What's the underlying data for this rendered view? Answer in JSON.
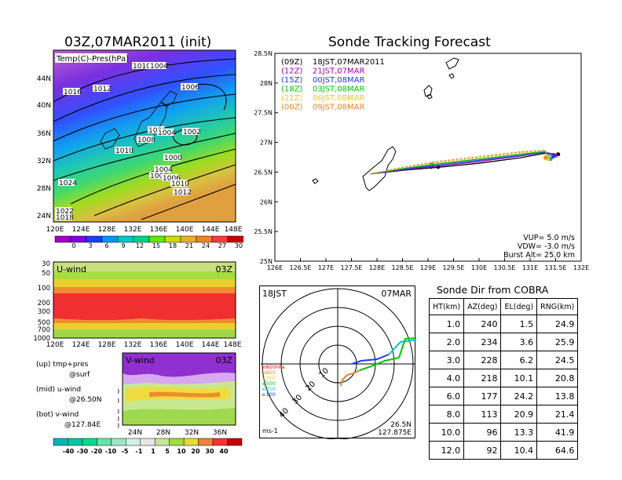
{
  "panels": {
    "sfc_title": "03Z,07MAR2011 (init)",
    "sfc_label": "Temp(C)-Pres(hPa)",
    "sfc_yticks": [
      "44N",
      "40N",
      "36N",
      "32N",
      "28N",
      "24N"
    ],
    "sfc_xticks": [
      "120E",
      "124E",
      "128E",
      "132E",
      "136E",
      "140E",
      "144E",
      "148E"
    ],
    "isobar_labels": [
      "1010",
      "1004",
      "1016",
      "1012",
      "1006",
      "1006",
      "1008",
      "1004",
      "1002",
      "1010",
      "1000",
      "1004",
      "1000",
      "1006",
      "1010",
      "1012",
      "1024",
      "1022",
      "1018"
    ],
    "temp_colorbar": {
      "ticks": [
        "0",
        "3",
        "6",
        "9",
        "12",
        "15",
        "18",
        "21",
        "24",
        "27",
        "30"
      ],
      "colors": [
        "#a000c8",
        "#8200dc",
        "#1e3cff",
        "#0096ff",
        "#00c8c8",
        "#00d28c",
        "#64e600",
        "#c8dc00",
        "#e6af2d",
        "#f08228",
        "#fa3c3c",
        "#c80000"
      ]
    },
    "uwind": {
      "label": "U-wind",
      "time": "03Z",
      "yticks": [
        "30",
        "50",
        "100",
        "200",
        "300",
        "500",
        "700",
        "1000"
      ],
      "xticks": [
        "120E",
        "124E",
        "128E",
        "132E",
        "136E",
        "140E",
        "144E",
        "148E"
      ]
    },
    "vwind": {
      "label": "V-wind",
      "time": "03Z",
      "yticks": [
        "200",
        "300",
        "500",
        "700",
        "1000"
      ],
      "xticks": [
        "24N",
        "28N",
        "32N",
        "36N"
      ]
    },
    "notes": [
      "(up) tmp+pres",
      "@surf",
      "(mid) u-wind",
      "@26.50N",
      "(bot) v-wind",
      "@127.84E"
    ],
    "wind_colorbar": {
      "ticks": [
        "-40",
        "-30",
        "-20",
        "-10",
        "-5",
        "-1",
        "1",
        "5",
        "10",
        "20",
        "30",
        "40"
      ],
      "colors": [
        "#00b4b4",
        "#00c8a0",
        "#00dc8c",
        "#64e6aa",
        "#a0e6c8",
        "#d2f0e6",
        "#e6e6e6",
        "#c8e696",
        "#a0dc3c",
        "#e6dc32",
        "#f0823c",
        "#fa3232",
        "#c80000"
      ]
    }
  },
  "track": {
    "title": "Sonde Tracking Forecast",
    "legend": [
      {
        "code": "(09Z)",
        "text": "18JST,07MAR2011",
        "color": "#000000"
      },
      {
        "code": "(12Z)",
        "text": "21JST,07MAR",
        "color": "#a000c0"
      },
      {
        "code": "(15Z)",
        "text": "00JST,08MAR",
        "color": "#1e3cff"
      },
      {
        "code": "(18Z)",
        "text": "03JST,08MAR",
        "color": "#00c800"
      },
      {
        "code": "(21Z)",
        "text": "06JST,08MAR",
        "color": "#f0c828"
      },
      {
        "code": "(00Z)",
        "text": "09JST,08MAR",
        "color": "#f08228"
      }
    ],
    "params": [
      "VUP= 5.0 m/s",
      "VDW= -3.0 m/s",
      "Burst Alt= 25.0 km"
    ]
  },
  "polar": {
    "time": "18JST",
    "date": "07MAR",
    "loc1": "26.5N",
    "loc2": "127.875E",
    "unit": "ms-1",
    "ring_labels": [
      "10",
      "20",
      "30",
      "40"
    ],
    "level_legend": [
      {
        "text": "≥850hPa",
        "color": "#fa0000"
      },
      {
        "text": "≤850",
        "color": "#f08228"
      },
      {
        "text": "≤700",
        "color": "#f0c828"
      },
      {
        "text": "≤500",
        "color": "#00c800"
      },
      {
        "text": "≤250",
        "color": "#00c8c8"
      },
      {
        "text": "≤100",
        "color": "#1e3cff"
      }
    ]
  },
  "sonde_table": {
    "title": "Sonde Dir from COBRA",
    "headers": [
      "HT(km)",
      "AZ(deg)",
      "EL(deg)",
      "RNG(km)"
    ]
  },
  "chart_data": [
    {
      "type": "line",
      "title": "Sonde Tracking Forecast",
      "xlabel": "",
      "ylabel": "",
      "xlim": [
        126,
        132
      ],
      "ylim": [
        25,
        28.5
      ],
      "xticks": [
        "126E",
        "126.5E",
        "127E",
        "127.5E",
        "128E",
        "128.5E",
        "129E",
        "129.5E",
        "130E",
        "130.5E",
        "131E",
        "131.5E",
        "132E"
      ],
      "yticks": [
        "25N",
        "25.5N",
        "26N",
        "26.5N",
        "27N",
        "27.5N",
        "28N",
        "28.5N"
      ],
      "series": [
        {
          "name": "(09Z) 18JST,07MAR2011",
          "color": "#000000",
          "x": [
            127.875,
            128.5,
            129.2,
            130.0,
            130.8,
            131.3,
            131.55
          ],
          "y": [
            26.47,
            26.53,
            26.58,
            26.65,
            26.74,
            26.82,
            26.8
          ]
        },
        {
          "name": "(12Z) 21JST,07MAR",
          "color": "#a000c0",
          "x": [
            127.875,
            128.5,
            129.2,
            130.0,
            130.8,
            131.3,
            131.5
          ],
          "y": [
            26.47,
            26.54,
            26.6,
            26.68,
            26.77,
            26.84,
            26.78
          ]
        },
        {
          "name": "(15Z) 00JST,08MAR",
          "color": "#1e3cff",
          "x": [
            127.875,
            128.5,
            129.2,
            130.0,
            130.8,
            131.3,
            131.45
          ],
          "y": [
            26.47,
            26.55,
            26.62,
            26.7,
            26.78,
            26.84,
            26.76
          ]
        },
        {
          "name": "(18Z) 03JST,08MAR",
          "color": "#00c800",
          "x": [
            127.875,
            128.5,
            129.2,
            130.0,
            130.8,
            131.3,
            131.4
          ],
          "y": [
            26.47,
            26.56,
            26.64,
            26.72,
            26.8,
            26.85,
            26.72
          ]
        },
        {
          "name": "(21Z) 06JST,08MAR",
          "color": "#f0c828",
          "x": [
            127.875,
            128.5,
            129.2,
            130.0,
            130.8,
            131.3,
            131.35
          ],
          "y": [
            26.47,
            26.57,
            26.66,
            26.74,
            26.82,
            26.86,
            26.72
          ]
        },
        {
          "name": "(00Z) 09JST,08MAR",
          "color": "#f08228",
          "x": [
            127.875,
            128.5,
            129.2,
            130.0,
            130.8,
            131.3,
            131.3
          ],
          "y": [
            26.47,
            26.58,
            26.68,
            26.76,
            26.84,
            26.87,
            26.74
          ]
        }
      ]
    },
    {
      "type": "table",
      "title": "Sonde Dir from COBRA",
      "columns": [
        "HT(km)",
        "AZ(deg)",
        "EL(deg)",
        "RNG(km)"
      ],
      "rows": [
        [
          "1.0",
          "240",
          "1.5",
          "24.9"
        ],
        [
          "2.0",
          "234",
          "3.6",
          "25.9"
        ],
        [
          "3.0",
          "228",
          "6.2",
          "24.5"
        ],
        [
          "4.0",
          "218",
          "10.1",
          "20.8"
        ],
        [
          "6.0",
          "177",
          "24.2",
          "13.8"
        ],
        [
          "8.0",
          "113",
          "20.9",
          "21.4"
        ],
        [
          "10.0",
          "96",
          "13.3",
          "41.9"
        ],
        [
          "12.0",
          "92",
          "10.4",
          "64.6"
        ]
      ]
    }
  ]
}
